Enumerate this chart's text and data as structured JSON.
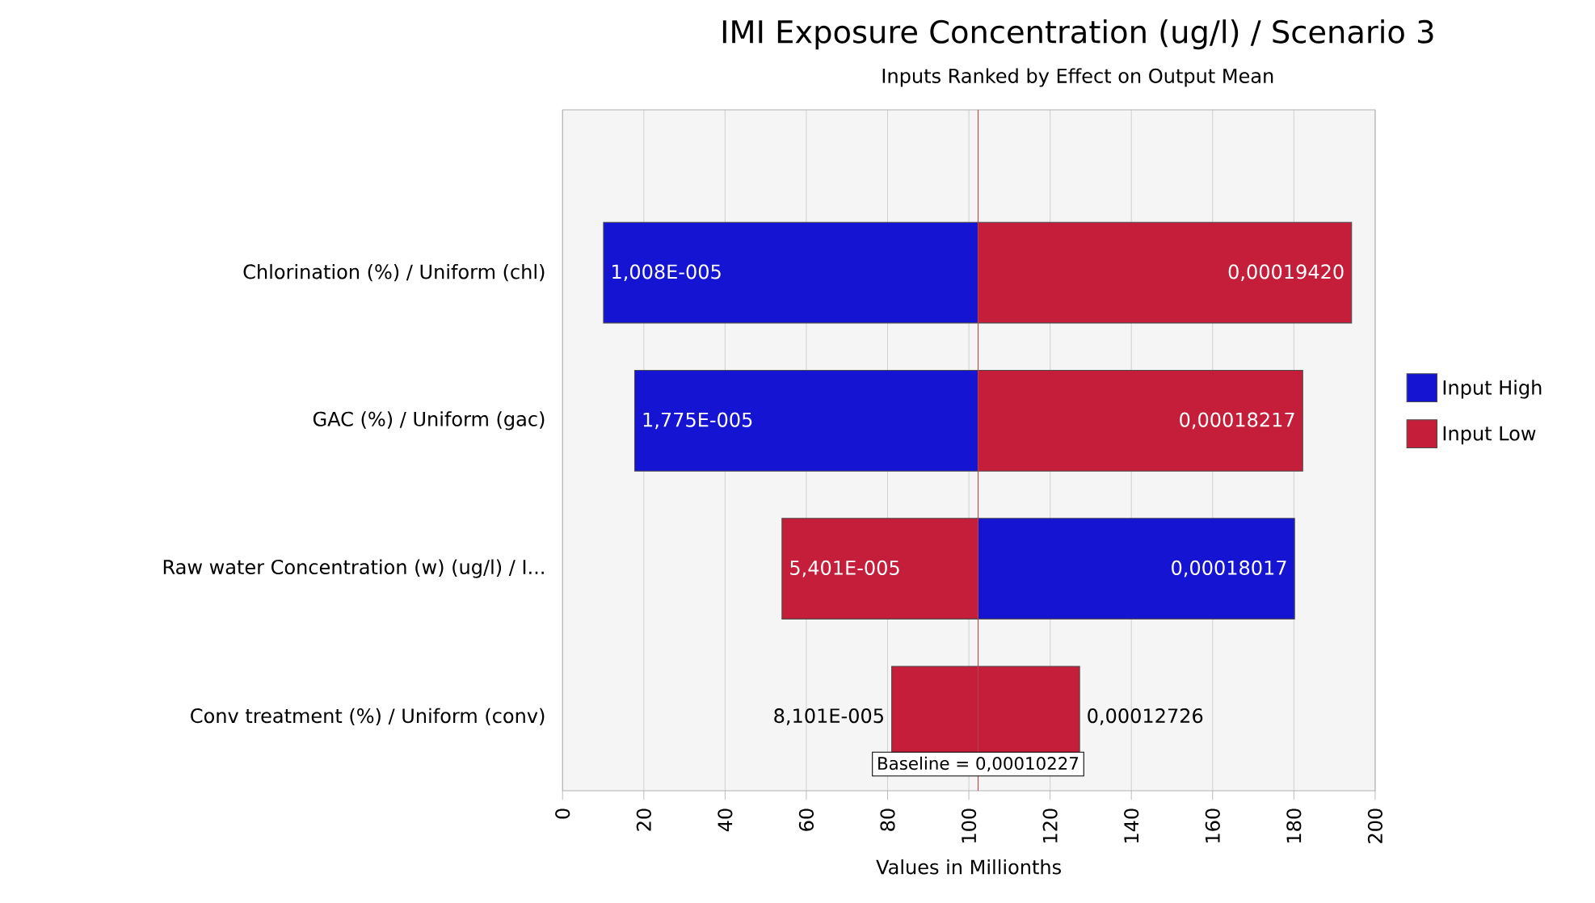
{
  "chart_data": {
    "type": "bar",
    "orientation": "horizontal",
    "title": "IMI Exposure Concentration  (ug/l) / Scenario 3",
    "subtitle": "Inputs Ranked by Effect on Output Mean",
    "xlabel": "Values in Millionths",
    "categories": [
      "Chlorination (%) / Uniform (chl)",
      "GAC (%) / Uniform (gac)",
      "Raw water Concentration (w) (ug/l) / I...",
      "Conv treatment (%) / Uniform (conv)"
    ],
    "series": [
      {
        "name": "Input High",
        "color": "#1414d2",
        "colors": [
          "#1414d2",
          "#1414d2",
          "#1414d2",
          "#c41e3a"
        ],
        "base": [
          10.08,
          17.75,
          102.27,
          102.27
        ],
        "values": [
          92.19,
          84.52,
          77.9,
          24.99
        ]
      },
      {
        "name": "Input Low",
        "color": "#c41e3a",
        "base": [
          102.27,
          102.27,
          54.01,
          81.01
        ],
        "values": [
          91.93,
          79.9,
          48.26,
          21.26
        ]
      }
    ],
    "annotations": [
      {
        "text": "1,008E-005",
        "x": 10.08,
        "y": "Chlorination (%) / Uniform (chl)"
      },
      {
        "text": "0,00019420",
        "x": 194.2,
        "y": "Chlorination (%) / Uniform (chl)"
      },
      {
        "text": "1,775E-005",
        "x": 17.75,
        "y": "GAC (%) / Uniform (gac)"
      },
      {
        "text": "0,00018217",
        "x": 182.17,
        "y": "GAC (%) / Uniform (gac)"
      },
      {
        "text": "5,401E-005",
        "x": 54.01,
        "y": "Raw water Concentration (w) (ug/l) / I..."
      },
      {
        "text": "0,00018017",
        "x": 180.17,
        "y": "Raw water Concentration (w) (ug/l) / I..."
      },
      {
        "text": "8,101E-005",
        "x": 81.01,
        "y": "Conv treatment (%) / Uniform (conv)"
      },
      {
        "text": "0,00012726",
        "x": 127.26,
        "y": "Conv treatment (%) / Uniform (conv)"
      },
      {
        "text": "Baseline = 0,00010227",
        "x": 102.27
      }
    ],
    "xlim": [
      0,
      200
    ],
    "xticks": [
      0,
      20,
      40,
      60,
      80,
      100,
      120,
      140,
      160,
      180,
      200
    ],
    "grid": "x",
    "legend": "right",
    "ref_lines": [
      {
        "axis": "x",
        "value": 102.27,
        "color": "#c04050"
      }
    ]
  }
}
